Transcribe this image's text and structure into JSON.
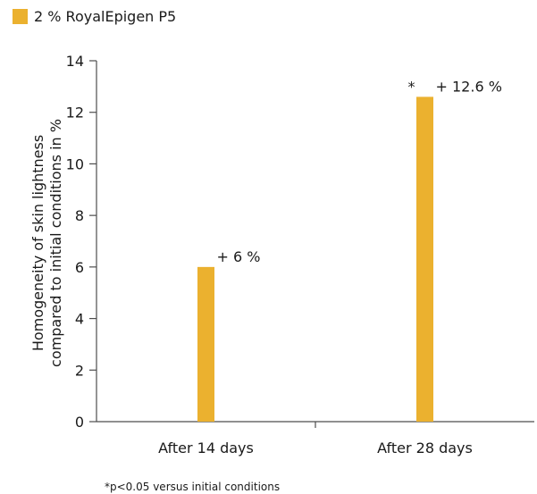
{
  "chart_data": {
    "type": "bar",
    "title": "",
    "xlabel": "",
    "ylabel": [
      "Homogeneity of skin lightness",
      "compared to initial conditions in %"
    ],
    "categories": [
      "After 14 days",
      "After 28 days"
    ],
    "series": [
      {
        "name": "2 % RoyalEpigen P5",
        "values": [
          6,
          12.6
        ],
        "color": "#EBB12F"
      }
    ],
    "data_labels": [
      "+ 6 %",
      "+ 12.6 %"
    ],
    "significance_marks": [
      "",
      "*"
    ],
    "ylim": [
      0,
      14
    ],
    "yticks": [
      0,
      2,
      4,
      6,
      8,
      10,
      12,
      14
    ],
    "grid": false,
    "legend_position": "top-left",
    "footnote": "*p<0.05 versus initial conditions"
  }
}
